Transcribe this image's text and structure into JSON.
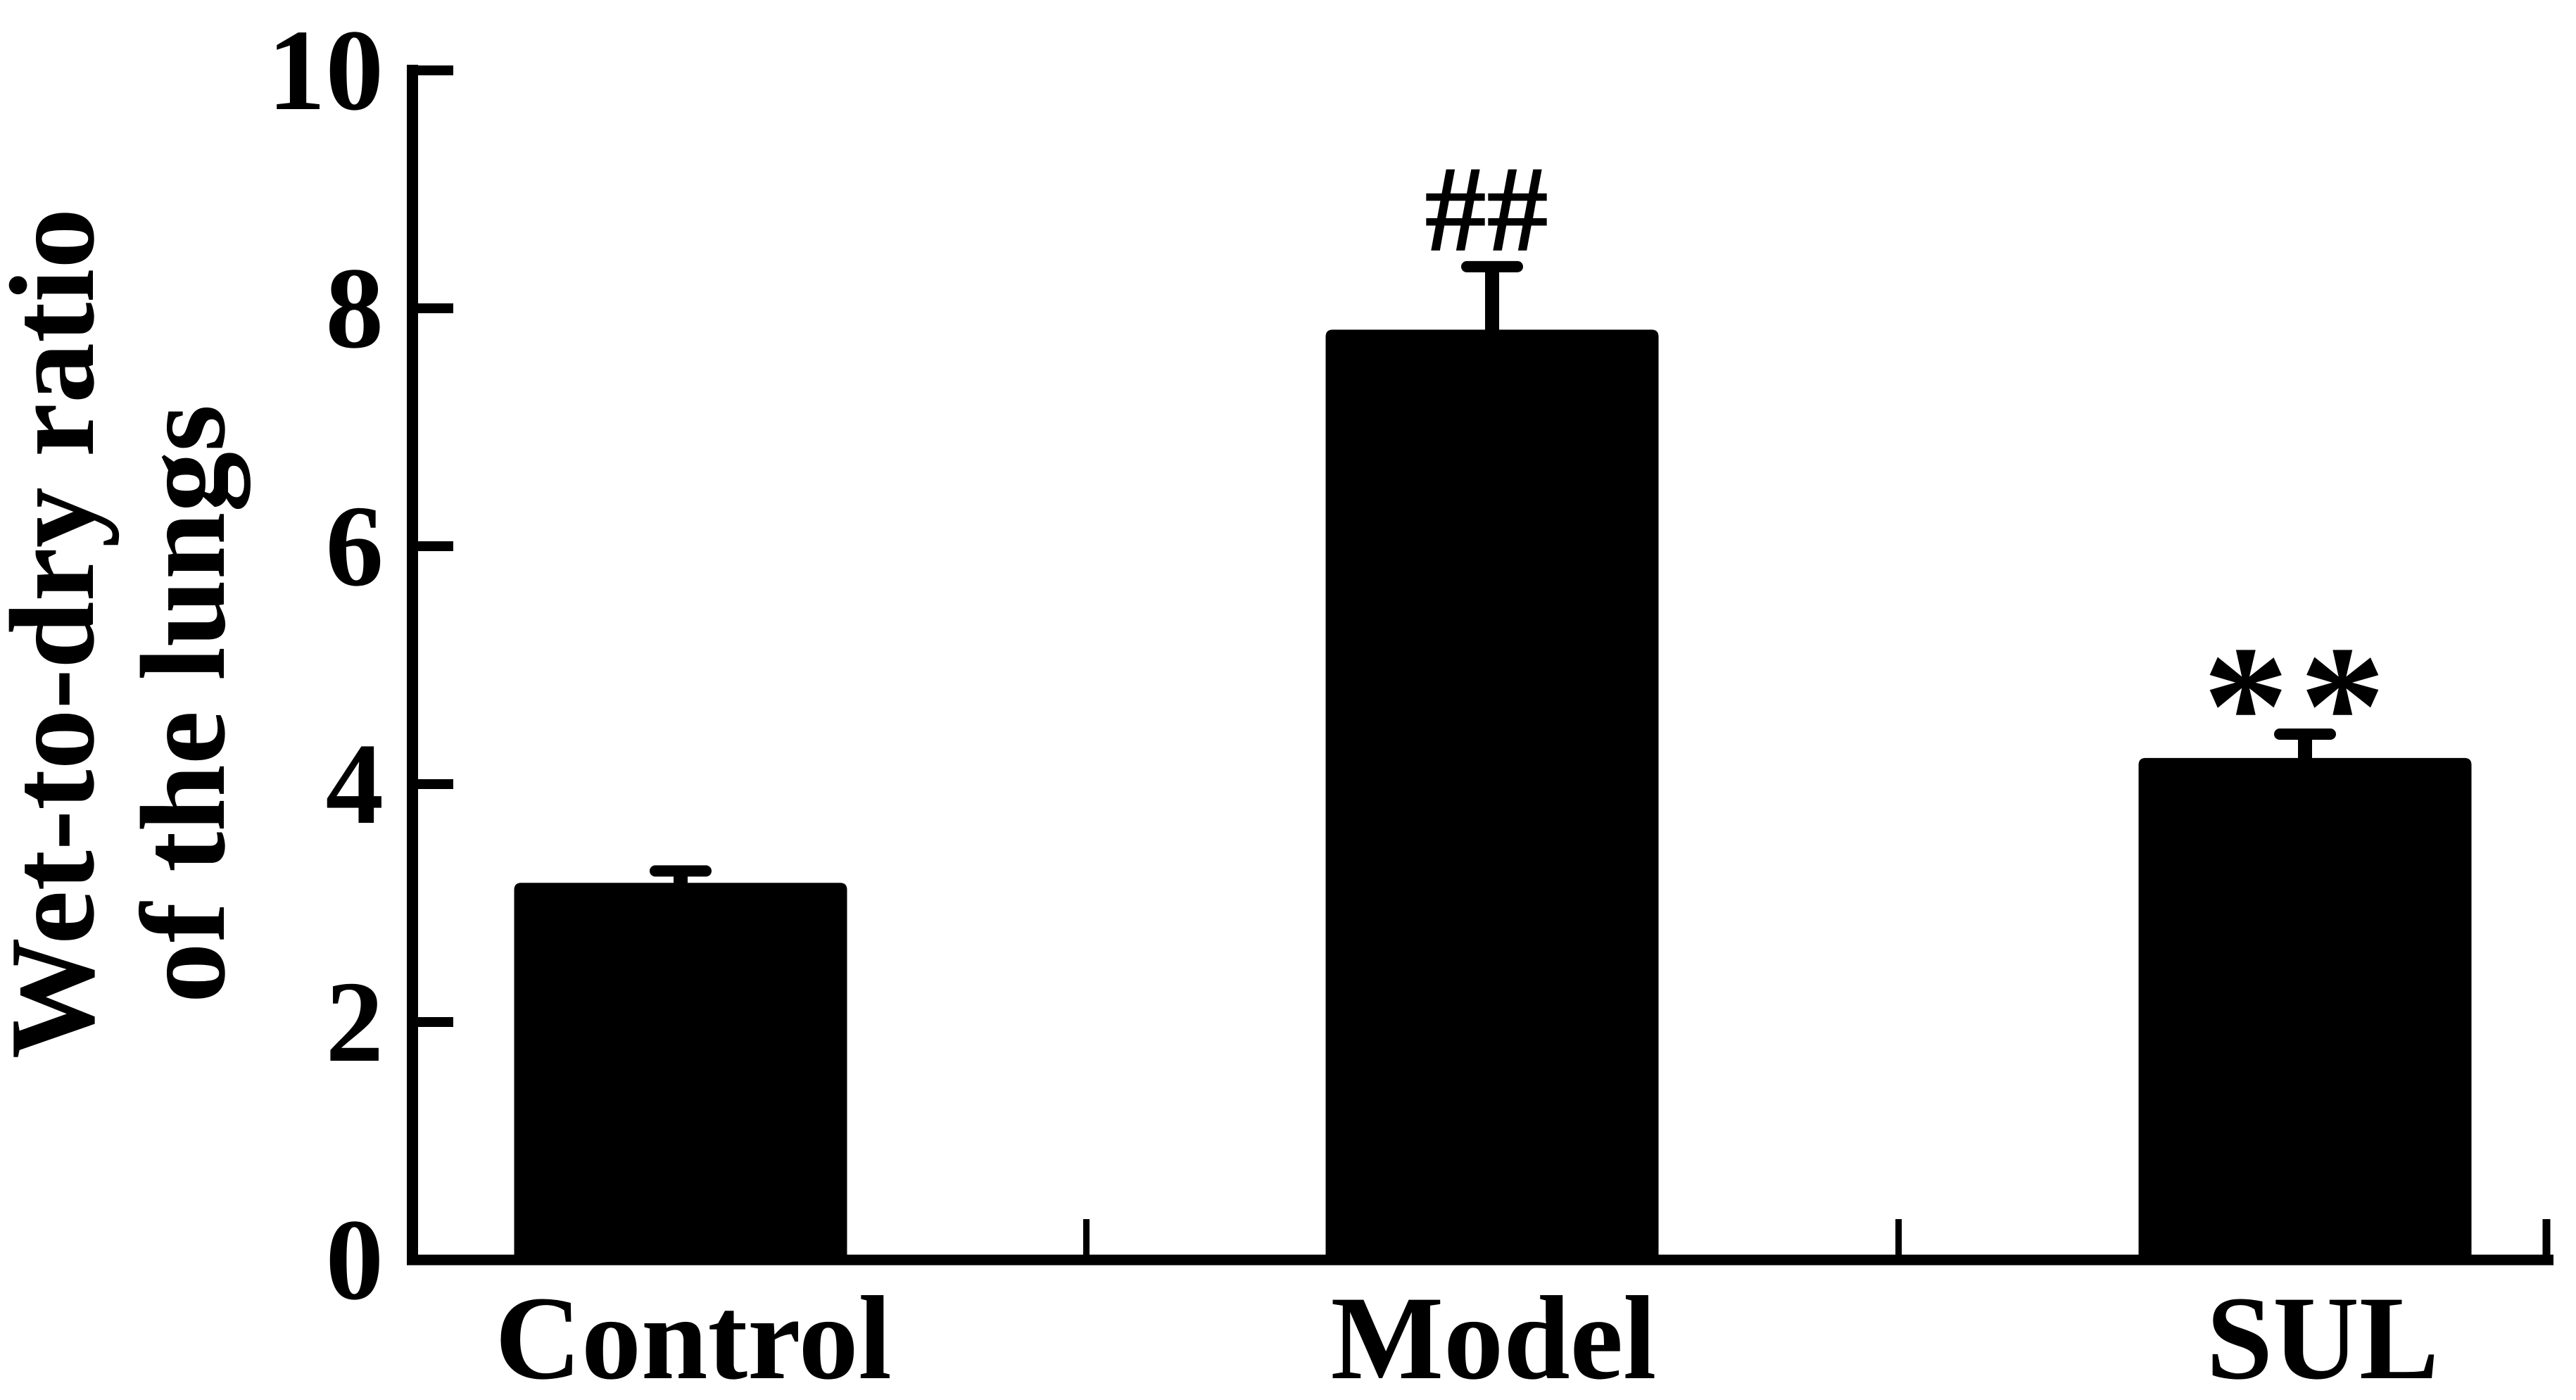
{
  "figure": {
    "background": "#ffffff",
    "ink": "#000000"
  },
  "chart_data": {
    "type": "bar",
    "title": "",
    "ylabel_lines": [
      "Wet-to-dry ratio",
      "of the lungs"
    ],
    "xlabel": "",
    "categories": [
      "Control",
      "Model",
      "SUL"
    ],
    "values": [
      3.17,
      7.82,
      4.22
    ],
    "error_upper": [
      0.1,
      0.53,
      0.2
    ],
    "annotations": [
      "",
      "##",
      "**"
    ],
    "ylim": [
      0,
      10
    ],
    "yticks": [
      0,
      2,
      4,
      6,
      8,
      10
    ],
    "bar_color": "#000000",
    "grid": false,
    "legend_position": "none",
    "error_bar_style": "upper-only-with-cap"
  }
}
